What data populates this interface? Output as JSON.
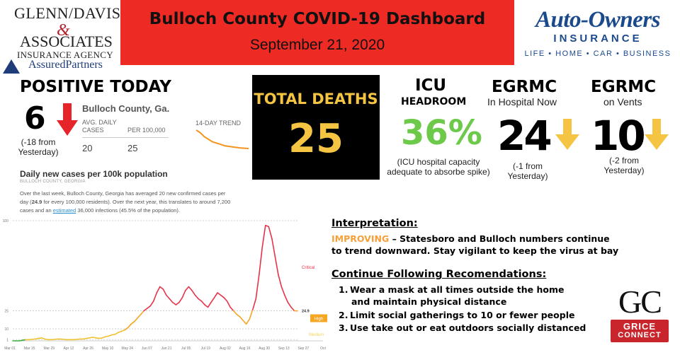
{
  "header": {
    "title": "Bulloch County COVID-19 Dashboard",
    "date": "September 21, 2020",
    "color": "#ee2a24"
  },
  "logo_left": {
    "line1": "GLENN/DAVIS",
    "amp": "&",
    "line2": "ASSOCIATES",
    "line3": "INSURANCE AGENCY",
    "line4": "AssuredPartners"
  },
  "logo_right": {
    "name": "Auto-Owners",
    "sub": "INSURANCE",
    "tagline": "LIFE • HOME • CAR • BUSINESS"
  },
  "positive_today": {
    "title": "POSITIVE TODAY",
    "value": "6",
    "change": "(-18 from Yesterday)",
    "trend": "down"
  },
  "county_card": {
    "title": "Bulloch County, Ga.",
    "avg_label": "AVG. DAILY CASES",
    "per_label": "PER 100,000",
    "avg_value": "20",
    "per_value": "25",
    "trend_label": "14-DAY TREND",
    "trend_values": [
      38,
      36,
      33,
      31,
      29,
      28,
      27,
      26,
      25.5,
      25,
      24.6,
      24.2,
      24,
      23.8
    ]
  },
  "deaths": {
    "label": "TOTAL DEATHS",
    "value": "25",
    "color": "#f6c443"
  },
  "icu": {
    "title": "ICU",
    "subtitle": "HEADROOM",
    "value": "36%",
    "note": "(ICU hospital capacity adequate to absorbe spike)",
    "color": "#6cc94a"
  },
  "hospital": {
    "title": "EGRMC",
    "subtitle": "In Hospital Now",
    "value": "24",
    "change": "(-1 from Yesterday)",
    "trend": "down"
  },
  "vents": {
    "title": "EGRMC",
    "subtitle": "on Vents",
    "value": "10",
    "change": "(-2 from Yesterday)",
    "trend": "down"
  },
  "chart_text": {
    "title": "Daily new cases per 100k population",
    "source": "BULLOCH COUNTY, GEORGIA",
    "desc_pre": "Over the last week, Bulloch County, Georgia has averaged 20 new confirmed cases per day (",
    "desc_bold": "24.9",
    "desc_mid": " for every 100,000 residents). Over the next year, this translates to around 7,200 cases and an ",
    "desc_link": "estimated",
    "desc_post": " 36,000 infections (45.5% of the population)."
  },
  "chart_data": {
    "type": "line",
    "title": "Daily new cases per 100k population",
    "x_ticks": [
      "Mar 01",
      "Mar 15",
      "Mar 29",
      "Apr 12",
      "Apr 26",
      "May 10",
      "May 24",
      "Jun 07",
      "Jun 21",
      "Jul 05",
      "Jul 19",
      "Aug 02",
      "Aug 16",
      "Aug 30",
      "Sep 13",
      "Sep 27",
      "Oct"
    ],
    "y_ticks": [
      1,
      10,
      25,
      100
    ],
    "ylim": [
      0,
      100
    ],
    "zones": [
      {
        "name": "Critical",
        "value": 100,
        "color": "#e8334a"
      },
      {
        "name": "High",
        "value": 25,
        "color": "#f5a623"
      },
      {
        "name": "Medium",
        "value": 10,
        "color": "#f0d35a"
      },
      {
        "name": "Low",
        "value": 1,
        "color": "#3cb043"
      }
    ],
    "current_value_label": "24.9",
    "series": [
      {
        "values": [
          0,
          0,
          0,
          0.5,
          1,
          1,
          1.2,
          1.5,
          2,
          2.5,
          1.5,
          1,
          1,
          1.2,
          1.5,
          1.5,
          1.2,
          1,
          1,
          1,
          1.2,
          1.5,
          1.5,
          2,
          2.5,
          3,
          2.5,
          2,
          2.5,
          3.5,
          4,
          5,
          5.5,
          7,
          8,
          9,
          11,
          14,
          16,
          19,
          22,
          25,
          27,
          29,
          33,
          40,
          45,
          43,
          38,
          35,
          32,
          30,
          32,
          36,
          42,
          45,
          42,
          38,
          35,
          33,
          30,
          28,
          32,
          36,
          40,
          38,
          36,
          33,
          28,
          25,
          22,
          20,
          17,
          14,
          18,
          26,
          35,
          55,
          78,
          96,
          95,
          85,
          70,
          55,
          45,
          38,
          32,
          28,
          25,
          24.9
        ]
      }
    ]
  },
  "interpretation": {
    "title": "Interpretation:",
    "status": "IMPROVING",
    "line1_rest": " – Statesboro and Bulloch numbers continue",
    "line2": "to trend downward.  Stay vigilant to keep the virus at bay",
    "status_color": "#f5a03a"
  },
  "recommendations": {
    "title": "Continue Following Recomendations:",
    "items": [
      {
        "num": "1.",
        "line1": "Wear a mask at all times outside the home",
        "line2": "and maintain physical distance"
      },
      {
        "num": "2.",
        "line1": "Limit social gatherings to 10 or fewer people",
        "line2": ""
      },
      {
        "num": "3.",
        "line1": "Use take out or eat outdoors socially distanced",
        "line2": ""
      }
    ]
  },
  "logo_gc": {
    "letters": "GC",
    "line1": "GRICE",
    "line2": "CONNECT"
  }
}
